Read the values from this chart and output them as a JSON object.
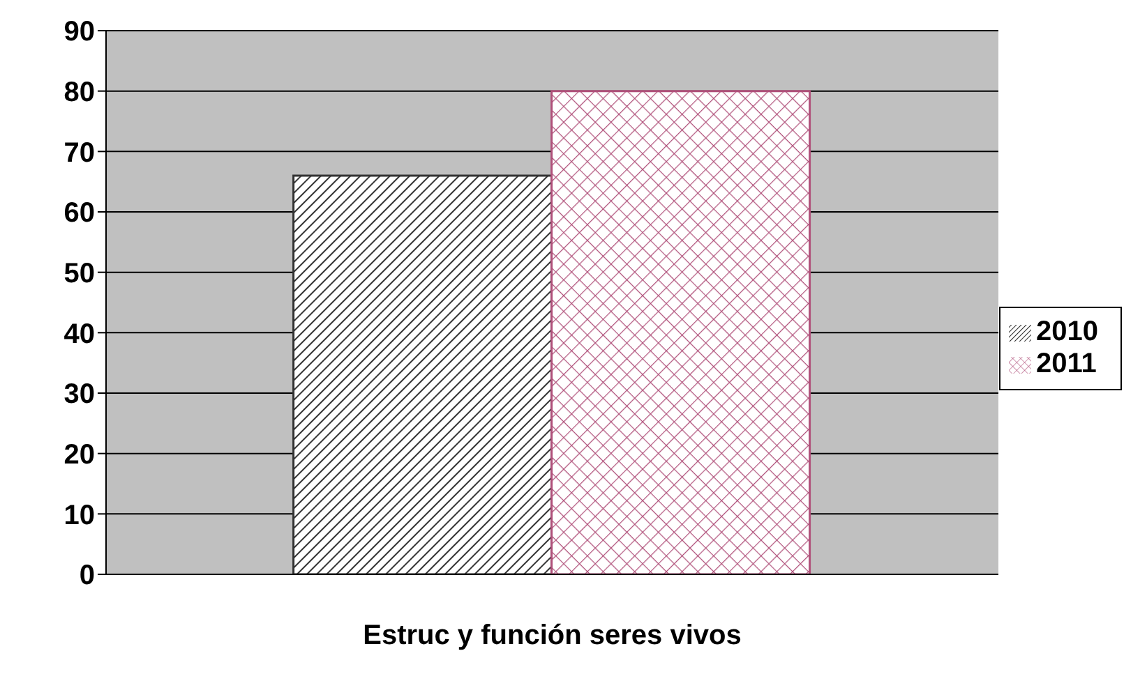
{
  "chart_data": {
    "type": "bar",
    "categories": [
      "Estruc y función seres vivos"
    ],
    "series": [
      {
        "name": "2010",
        "color": "#333333",
        "values": [
          66
        ]
      },
      {
        "name": "2011",
        "color": "#b0507a",
        "values": [
          80
        ]
      }
    ],
    "ylim": [
      0,
      90
    ],
    "yticks": [
      0,
      10,
      20,
      30,
      40,
      50,
      60,
      70,
      80,
      90
    ],
    "grid": "y",
    "legend": "right"
  }
}
